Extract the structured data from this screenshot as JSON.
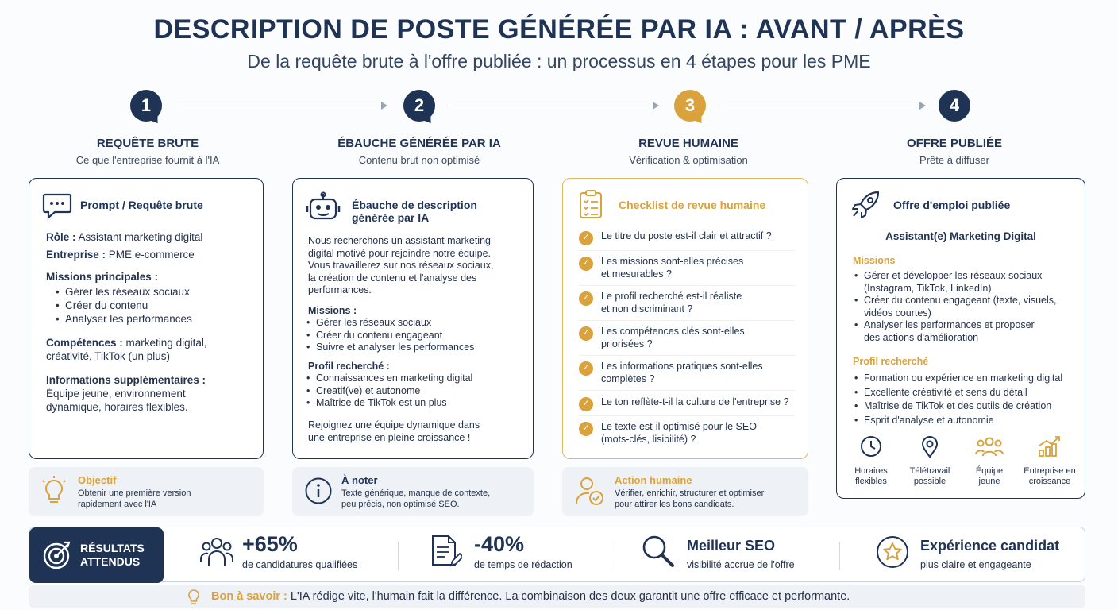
{
  "header": {
    "title": "DESCRIPTION DE POSTE GÉNÉRÉE PAR IA : AVANT / APRÈS",
    "subtitle": "De la requête brute à l'offre publiée : un processus en 4 étapes pour les PME"
  },
  "steps": [
    {
      "number": "1",
      "title": "REQUÊTE BRUTE",
      "subtitle": "Ce que l'entreprise fournit à l'IA"
    },
    {
      "number": "2",
      "title": "ÉBAUCHE GÉNÉRÉE PAR IA",
      "subtitle": "Contenu brut non optimisé"
    },
    {
      "number": "3",
      "title": "REVUE HUMAINE",
      "subtitle": "Vérification & optimisation"
    },
    {
      "number": "4",
      "title": "OFFRE PUBLIÉE",
      "subtitle": "Prête à diffuser"
    }
  ],
  "card1": {
    "heading": "Prompt / Requête brute",
    "role_label": "Rôle :",
    "role_value": "Assistant marketing digital",
    "company_label": "Entreprise :",
    "company_value": "PME e-commerce",
    "missions_label": "Missions principales :",
    "missions": [
      "Gérer les réseaux sociaux",
      "Créer du contenu",
      "Analyser les performances"
    ],
    "skills_label": "Compétences :",
    "skills_value_1": "marketing digital,",
    "skills_value_2": "créativité, TikTok (un plus)",
    "info_label": "Informations supplémentaires :",
    "info_value_1": "Équipe jeune, environnement",
    "info_value_2": "dynamique, horaires flexibles."
  },
  "card2": {
    "heading_1": "Ébauche de description",
    "heading_2": "générée par IA",
    "intro": [
      "Nous recherchons un assistant marketing",
      "digital motivé pour rejoindre notre équipe.",
      "Vous travaillerez sur nos réseaux sociaux,",
      "la création de contenu et l'analyse des",
      "performances."
    ],
    "missions_label": "Missions :",
    "missions": [
      "Gérer les réseaux sociaux",
      "Créer du contenu engageant",
      "Suivre et analyser les performances"
    ],
    "profile_label": "Profil recherché :",
    "profile": [
      "Connaissances en marketing digital",
      "Creatif(ve) et autonome",
      "Maîtrise de TikTok est un plus"
    ],
    "closing_1": "Rejoignez une équipe dynamique dans",
    "closing_2": "une entreprise en pleine croissance !"
  },
  "card3": {
    "heading": "Checklist de revue humaine",
    "checks": [
      [
        "Le titre du poste est-il clair et attractif ?"
      ],
      [
        "Les missions sont-elles précises",
        "et mesurables ?"
      ],
      [
        "Le profil recherché est-il réaliste",
        "et non discriminant ?"
      ],
      [
        "Les compétences clés sont-elles",
        "priorisées ?"
      ],
      [
        "Les informations pratiques sont-elles",
        "complètes ?"
      ],
      [
        "Le ton reflète-t-il la culture de l'entreprise ?"
      ],
      [
        "Le texte est-il optimisé pour le SEO",
        "(mots-clés, lisibilité) ?"
      ]
    ]
  },
  "card4": {
    "heading": "Offre d'emploi publiée",
    "job_title": "Assistant(e) Marketing Digital",
    "missions_label": "Missions",
    "missions": [
      [
        "Gérer et développer les réseaux sociaux",
        "(Instagram, TikTok, LinkedIn)"
      ],
      [
        "Créer du contenu engageant (texte, visuels,",
        "vidéos courtes)"
      ],
      [
        "Analyser les performances et proposer",
        "des actions d'amélioration"
      ]
    ],
    "profile_label": "Profil recherché",
    "profile": [
      "Formation ou expérience en marketing digital",
      "Excellente créativité et sens du détail",
      "Maîtrise de TikTok et des outils de création",
      "Esprit d'analyse et autonomie"
    ],
    "perks": [
      {
        "icon": "clock-icon",
        "line1": "Horaires",
        "line2": "flexibles"
      },
      {
        "icon": "location-pin-icon",
        "line1": "Télétravail",
        "line2": "possible"
      },
      {
        "icon": "team-icon",
        "line1": "Équipe",
        "line2": "jeune"
      },
      {
        "icon": "growth-chart-icon",
        "line1": "Entreprise en",
        "line2": "croissance"
      }
    ]
  },
  "notes": [
    {
      "icon": "lightbulb-icon",
      "title": "Objectif",
      "line1": "Obtenir une première version",
      "line2": "rapidement avec l'IA"
    },
    {
      "icon": "info-icon",
      "title": "À noter",
      "line1": "Texte générique, manque de contexte,",
      "line2": "peu précis, non optimisé SEO."
    },
    {
      "icon": "person-check-icon",
      "title": "Action humaine",
      "line1": "Vérifier, enrichir, structurer et optimiser",
      "line2": "pour attirer les bons candidats."
    }
  ],
  "results": {
    "label_1": "RÉSULTATS",
    "label_2": "ATTENDUS",
    "kpis": [
      {
        "icon": "candidates-icon",
        "value": "+65%",
        "caption": "de candidatures qualifiées"
      },
      {
        "icon": "document-edit-icon",
        "value": "-40%",
        "caption": "de temps de rédaction"
      },
      {
        "icon": "magnifier-icon",
        "value": "Meilleur SEO",
        "caption": "visibilité accrue de l'offre"
      },
      {
        "icon": "star-icon",
        "value": "Expérience candidat",
        "caption": "plus claire et engageante"
      }
    ]
  },
  "footer": {
    "label": "Bon à savoir :",
    "text": "L'IA rédige vite, l'humain fait la différence. La combinaison des deux garantit une offre efficace et performante."
  },
  "colors": {
    "navy": "#1f3355",
    "gold": "#d9a23c"
  }
}
